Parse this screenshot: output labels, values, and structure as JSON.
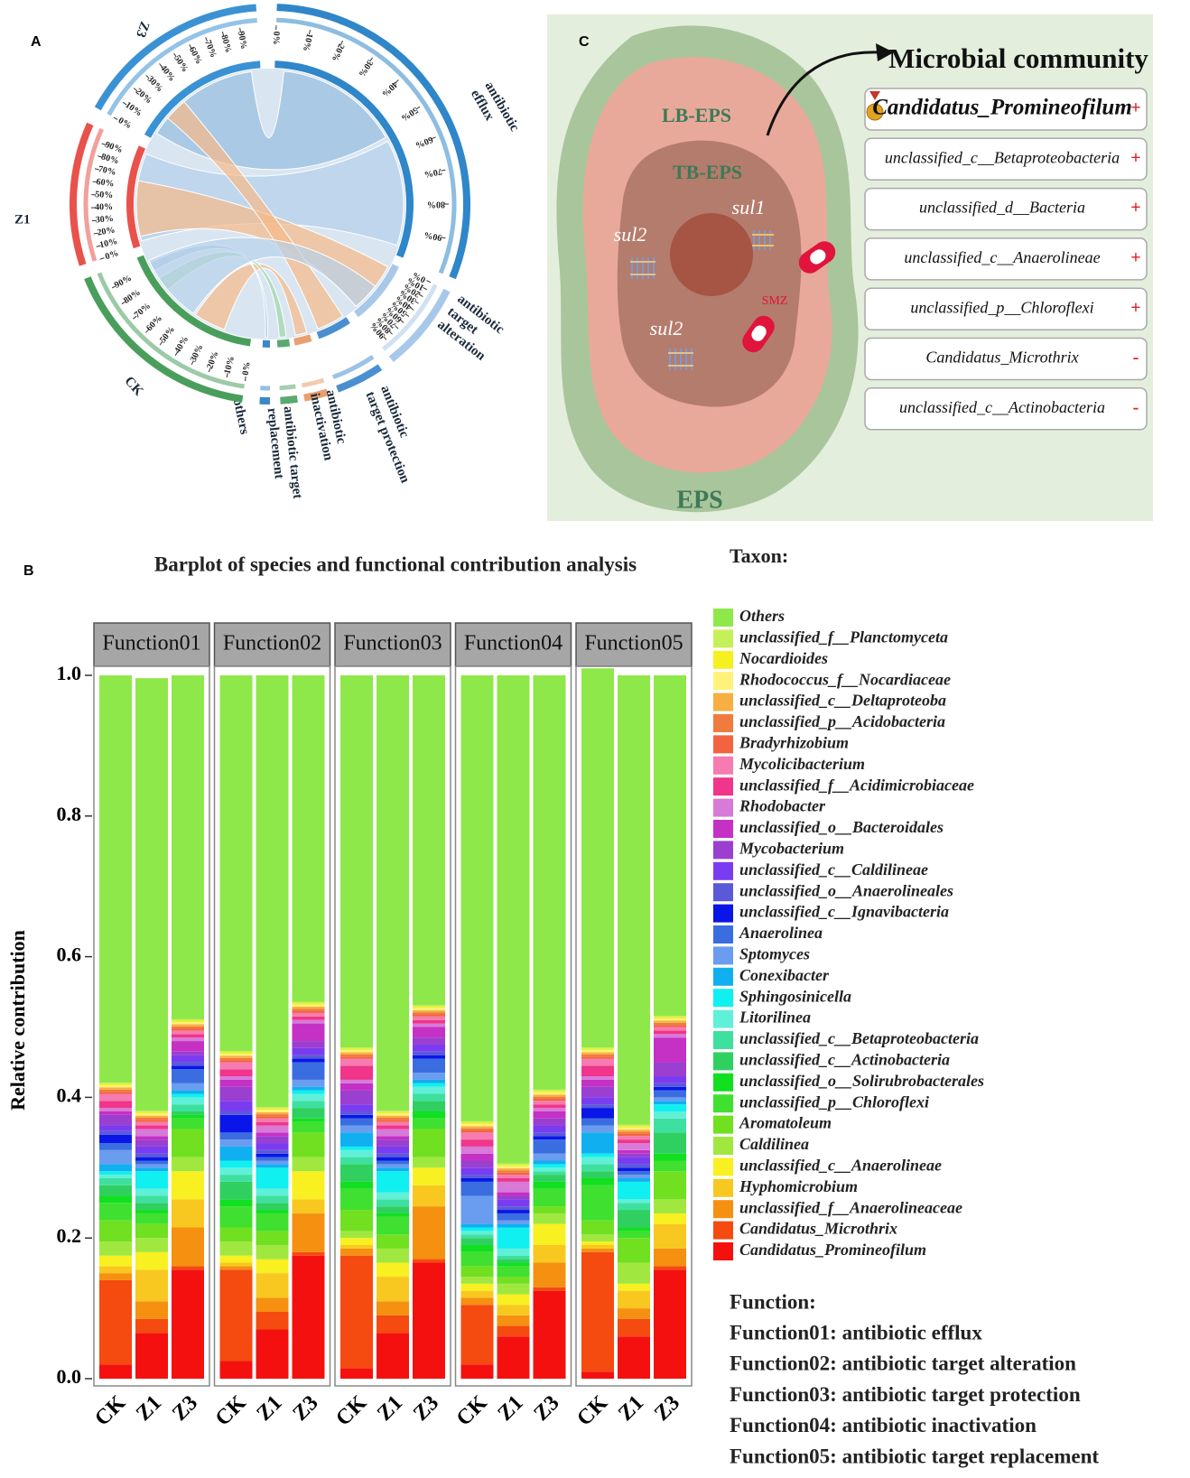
{
  "panel_labels": [
    "A",
    "B",
    "C"
  ],
  "chord": {
    "scale_labels": [
      "0%",
      "10%",
      "20%",
      "30%",
      "40%",
      "50%",
      "60%",
      "70%",
      "80%",
      "90%"
    ],
    "groups": [
      {
        "label": [
          "Z3"
        ]
      },
      {
        "label": [
          "antibiotic",
          "efflux"
        ]
      },
      {
        "label": [
          "antibiotic",
          "target",
          "alteration"
        ]
      },
      {
        "label": [
          "antibiotic",
          "target protection"
        ]
      },
      {
        "label": [
          "antibiotic",
          "inactivation"
        ]
      },
      {
        "label": [
          "antibiotic target",
          "replacement"
        ]
      },
      {
        "label": [
          "others"
        ]
      },
      {
        "label": [
          "CK"
        ]
      },
      {
        "label": [
          "Z1"
        ]
      }
    ]
  },
  "diagram": {
    "eps": "EPS",
    "lb_eps": "LB-EPS",
    "tb_eps": "TB-EPS",
    "genes": [
      "sul1",
      "sul2",
      "sul2"
    ],
    "drug": "SMZ",
    "title": "Microbial community",
    "taxa": [
      {
        "name": "Candidatus_Promineofilum",
        "sign": "+"
      },
      {
        "name": "unclassified_c__Betaproteobacteria",
        "sign": "+"
      },
      {
        "name": "unclassified_d__Bacteria",
        "sign": "+"
      },
      {
        "name": "unclassified_c__Anaerolineae",
        "sign": "+"
      },
      {
        "name": "unclassified_p__Chloroflexi",
        "sign": "+"
      },
      {
        "name": "Candidatus_Microthrix",
        "sign": "-"
      },
      {
        "name": "unclassified_c__Actinobacteria",
        "sign": "-"
      }
    ]
  },
  "chart_data": {
    "type": "bar",
    "stacked": true,
    "title": "Barplot of species and functional contribution analysis",
    "y_label": "Relative contribution",
    "legend_title": "Taxon:",
    "facets": [
      "Function01",
      "Function02",
      "Function03",
      "Function04",
      "Function05"
    ],
    "categories": [
      "CK",
      "Z1",
      "Z3"
    ],
    "ylim": [
      0,
      1
    ],
    "yticks": [
      {
        "value": 0,
        "label": "0.0"
      },
      0.2,
      0.4,
      0.6,
      0.8,
      {
        "value": 1,
        "label": "1.0"
      }
    ],
    "function_key": {
      "title": "Function:",
      "items": [
        "Function01: antibiotic efflux",
        "Function02: antibiotic target alteration",
        "Function03: antibiotic target protection",
        "Function04: antibiotic inactivation",
        "Function05: antibiotic target replacement"
      ]
    },
    "series": [
      {
        "name": "Others",
        "color": "#8fe84a",
        "values": [
          [
            0.579,
            0.615,
            0.489
          ],
          [
            0.534,
            0.614,
            0.464
          ],
          [
            0.529,
            0.619,
            0.469
          ],
          [
            0.634,
            0.694,
            0.589
          ],
          [
            0.539,
            0.639,
            0.484
          ]
        ]
      },
      {
        "name": "unclassified_f__Planctomyceta",
        "color": "#c6f05a",
        "values": [
          [
            0.002,
            0.002,
            0.002
          ],
          [
            0.002,
            0.002,
            0.002
          ],
          [
            0.002,
            0.002,
            0.002
          ],
          [
            0.002,
            0.002,
            0.002
          ],
          [
            0.002,
            0.002,
            0.002
          ]
        ]
      },
      {
        "name": "Nocardioides",
        "color": "#f5f020",
        "values": [
          [
            0.002,
            0.002,
            0.002
          ],
          [
            0.002,
            0.002,
            0.002
          ],
          [
            0.002,
            0.002,
            0.002
          ],
          [
            0.002,
            0.002,
            0.002
          ],
          [
            0.002,
            0.002,
            0.002
          ]
        ]
      },
      {
        "name": "Rhodococcus_f__Nocardiaceae",
        "color": "#fff27a",
        "values": [
          [
            0.003,
            0.003,
            0.003
          ],
          [
            0.003,
            0.003,
            0.003
          ],
          [
            0.003,
            0.003,
            0.003
          ],
          [
            0.003,
            0.003,
            0.003
          ],
          [
            0.003,
            0.003,
            0.003
          ]
        ]
      },
      {
        "name": "unclassified_c__Deltaproteoba",
        "color": "#f5b041",
        "values": [
          [
            0.003,
            0.003,
            0.003
          ],
          [
            0.003,
            0.003,
            0.003
          ],
          [
            0.003,
            0.003,
            0.003
          ],
          [
            0.003,
            0.003,
            0.003
          ],
          [
            0.003,
            0.003,
            0.003
          ]
        ]
      },
      {
        "name": "unclassified_p__Acidobacteria",
        "color": "#f07b3f",
        "values": [
          [
            0.003,
            0.003,
            0.003
          ],
          [
            0.003,
            0.003,
            0.003
          ],
          [
            0.003,
            0.003,
            0.003
          ],
          [
            0.003,
            0.003,
            0.003
          ],
          [
            0.003,
            0.003,
            0.003
          ]
        ]
      },
      {
        "name": "Bradyrhizobium",
        "color": "#f26440",
        "values": [
          [
            0.003,
            0.003,
            0.003
          ],
          [
            0.003,
            0.003,
            0.003
          ],
          [
            0.003,
            0.003,
            0.003
          ],
          [
            0.003,
            0.003,
            0.003
          ],
          [
            0.003,
            0.003,
            0.003
          ]
        ]
      },
      {
        "name": "Mycolicibacterium",
        "color": "#f57bb0",
        "values": [
          [
            0.01,
            0.005,
            0.005
          ],
          [
            0.01,
            0.005,
            0.005
          ],
          [
            0.01,
            0.005,
            0.005
          ],
          [
            0.01,
            0.005,
            0.005
          ],
          [
            0.01,
            0.005,
            0.005
          ]
        ]
      },
      {
        "name": "unclassified_f__Acidimicrobiaceae",
        "color": "#f0358a",
        "values": [
          [
            0.01,
            0.005,
            0.005
          ],
          [
            0.01,
            0.005,
            0.005
          ],
          [
            0.02,
            0.005,
            0.005
          ],
          [
            0.01,
            0.005,
            0.005
          ],
          [
            0.015,
            0.005,
            0.005
          ]
        ]
      },
      {
        "name": "Rhodobacter",
        "color": "#d77ad8",
        "values": [
          [
            0.005,
            0.01,
            0.005
          ],
          [
            0.005,
            0.01,
            0.005
          ],
          [
            0.005,
            0.01,
            0.005
          ],
          [
            0.01,
            0.015,
            0.005
          ],
          [
            0.005,
            0.01,
            0.005
          ]
        ]
      },
      {
        "name": "unclassified_o__Bacteroidales",
        "color": "#c530c5",
        "values": [
          [
            0.005,
            0.005,
            0.015
          ],
          [
            0.01,
            0.005,
            0.025
          ],
          [
            0.01,
            0.005,
            0.015
          ],
          [
            0.01,
            0.005,
            0.01
          ],
          [
            0.01,
            0.005,
            0.035
          ]
        ]
      },
      {
        "name": "Mycobacterium",
        "color": "#9a3fd0",
        "values": [
          [
            0.015,
            0.01,
            0.005
          ],
          [
            0.02,
            0.01,
            0.01
          ],
          [
            0.02,
            0.01,
            0.01
          ],
          [
            0.01,
            0.005,
            0.01
          ],
          [
            0.015,
            0.005,
            0.02
          ]
        ]
      },
      {
        "name": "unclassified_c__Caldilineae",
        "color": "#7a3cf0",
        "values": [
          [
            0.008,
            0.01,
            0.01
          ],
          [
            0.015,
            0.01,
            0.01
          ],
          [
            0.01,
            0.01,
            0.01
          ],
          [
            0.01,
            0.01,
            0.01
          ],
          [
            0.01,
            0.01,
            0.01
          ]
        ]
      },
      {
        "name": "unclassified_o__Anaerolineales",
        "color": "#5a5ad8",
        "values": [
          [
            0.005,
            0.005,
            0.005
          ],
          [
            0.005,
            0.005,
            0.005
          ],
          [
            0.005,
            0.005,
            0.005
          ],
          [
            0.005,
            0.005,
            0.005
          ],
          [
            0.005,
            0.005,
            0.005
          ]
        ]
      },
      {
        "name": "unclassified_c__Ignavibacteria",
        "color": "#0a16e8",
        "values": [
          [
            0.012,
            0.005,
            0.005
          ],
          [
            0.025,
            0.005,
            0.005
          ],
          [
            0.005,
            0.005,
            0.005
          ],
          [
            0.005,
            0.005,
            0.005
          ],
          [
            0.015,
            0.005,
            0.005
          ]
        ]
      },
      {
        "name": "Anaerolinea",
        "color": "#3a6ee0",
        "values": [
          [
            0.01,
            0.005,
            0.02
          ],
          [
            0.01,
            0.005,
            0.025
          ],
          [
            0.01,
            0.005,
            0.02
          ],
          [
            0.02,
            0.01,
            0.02
          ],
          [
            0.01,
            0.005,
            0.01
          ]
        ]
      },
      {
        "name": "Sptomyces",
        "color": "#6a9cf0",
        "values": [
          [
            0.02,
            0.005,
            0.01
          ],
          [
            0.01,
            0.005,
            0.01
          ],
          [
            0.01,
            0.005,
            0.01
          ],
          [
            0.04,
            0.005,
            0.01
          ],
          [
            0.01,
            0.005,
            0.005
          ]
        ]
      },
      {
        "name": "Conexibacter",
        "color": "#10b0f0",
        "values": [
          [
            0.01,
            0.005,
            0.005
          ],
          [
            0.02,
            0.005,
            0.005
          ],
          [
            0.02,
            0.005,
            0.005
          ],
          [
            0.005,
            0.005,
            0.005
          ],
          [
            0.03,
            0.005,
            0.005
          ]
        ]
      },
      {
        "name": "Sphingosinicella",
        "color": "#10f0f0",
        "values": [
          [
            0.005,
            0.025,
            0.005
          ],
          [
            0.01,
            0.03,
            0.005
          ],
          [
            0.005,
            0.03,
            0.005
          ],
          [
            0.005,
            0.03,
            0.005
          ],
          [
            0.005,
            0.025,
            0.01
          ]
        ]
      },
      {
        "name": "Litorilinea",
        "color": "#60f0d8",
        "values": [
          [
            0.005,
            0.01,
            0.01
          ],
          [
            0.01,
            0.01,
            0.01
          ],
          [
            0.01,
            0.01,
            0.01
          ],
          [
            0.005,
            0.01,
            0.005
          ],
          [
            0.01,
            0.005,
            0.01
          ]
        ]
      },
      {
        "name": "unclassified_c__Betaproteobacteria",
        "color": "#3ee0a0",
        "values": [
          [
            0.01,
            0.01,
            0.01
          ],
          [
            0.01,
            0.01,
            0.01
          ],
          [
            0.01,
            0.01,
            0.01
          ],
          [
            0.005,
            0.005,
            0.005
          ],
          [
            0.01,
            0.01,
            0.02
          ]
        ]
      },
      {
        "name": "unclassified_c__Actinobacteria",
        "color": "#30d060",
        "values": [
          [
            0.015,
            0.01,
            0.005
          ],
          [
            0.025,
            0.01,
            0.015
          ],
          [
            0.025,
            0.01,
            0.015
          ],
          [
            0.01,
            0.005,
            0.01
          ],
          [
            0.01,
            0.025,
            0.03
          ]
        ]
      },
      {
        "name": "unclassified_o__Solirubrobacterales",
        "color": "#10e020",
        "values": [
          [
            0.01,
            0.005,
            0.005
          ],
          [
            0.01,
            0.005,
            0.005
          ],
          [
            0.01,
            0.005,
            0.01
          ],
          [
            0.01,
            0.005,
            0.01
          ],
          [
            0.01,
            0.005,
            0.01
          ]
        ]
      },
      {
        "name": "unclassified_p__Chloroflexi",
        "color": "#40e030",
        "values": [
          [
            0.025,
            0.015,
            0.015
          ],
          [
            0.03,
            0.025,
            0.015
          ],
          [
            0.03,
            0.025,
            0.015
          ],
          [
            0.02,
            0.015,
            0.025
          ],
          [
            0.05,
            0.01,
            0.015
          ]
        ]
      },
      {
        "name": "Aromatoleum",
        "color": "#70e020",
        "values": [
          [
            0.03,
            0.02,
            0.04
          ],
          [
            0.02,
            0.02,
            0.035
          ],
          [
            0.03,
            0.02,
            0.04
          ],
          [
            0.015,
            0.01,
            0.01
          ],
          [
            0.02,
            0.035,
            0.04
          ]
        ]
      },
      {
        "name": "Caldilinea",
        "color": "#a0e840",
        "values": [
          [
            0.02,
            0.02,
            0.02
          ],
          [
            0.02,
            0.02,
            0.02
          ],
          [
            0.01,
            0.02,
            0.015
          ],
          [
            0.01,
            0.015,
            0.015
          ],
          [
            0.01,
            0.03,
            0.02
          ]
        ]
      },
      {
        "name": "unclassified_c__Anaerolineae",
        "color": "#f8f020",
        "values": [
          [
            0.015,
            0.025,
            0.04
          ],
          [
            0.01,
            0.02,
            0.04
          ],
          [
            0.01,
            0.02,
            0.025
          ],
          [
            0.01,
            0.015,
            0.03
          ],
          [
            0.005,
            0.01,
            0.015
          ]
        ]
      },
      {
        "name": "Hyphomicrobium",
        "color": "#f8c820",
        "values": [
          [
            0.01,
            0.045,
            0.04
          ],
          [
            0.005,
            0.035,
            0.02
          ],
          [
            0.005,
            0.035,
            0.03
          ],
          [
            0.01,
            0.015,
            0.025
          ],
          [
            0.005,
            0.025,
            0.035
          ]
        ]
      },
      {
        "name": "unclassified_f__Anaerolineaceae",
        "color": "#f59010",
        "values": [
          [
            0.01,
            0.025,
            0.055
          ],
          [
            0.005,
            0.02,
            0.055
          ],
          [
            0.01,
            0.02,
            0.075
          ],
          [
            0.01,
            0.015,
            0.035
          ],
          [
            0.005,
            0.015,
            0.025
          ]
        ]
      },
      {
        "name": "Candidatus_Microthrix",
        "color": "#f54a10",
        "values": [
          [
            0.12,
            0.02,
            0.005
          ],
          [
            0.13,
            0.025,
            0.005
          ],
          [
            0.16,
            0.025,
            0.005
          ],
          [
            0.085,
            0.015,
            0.005
          ],
          [
            0.17,
            0.025,
            0.005
          ]
        ]
      },
      {
        "name": "Candidatus_Promineofilum",
        "color": "#f51010",
        "values": [
          [
            0.02,
            0.065,
            0.155
          ],
          [
            0.025,
            0.07,
            0.175
          ],
          [
            0.015,
            0.065,
            0.165
          ],
          [
            0.02,
            0.06,
            0.125
          ],
          [
            0.01,
            0.06,
            0.155
          ]
        ]
      }
    ]
  }
}
